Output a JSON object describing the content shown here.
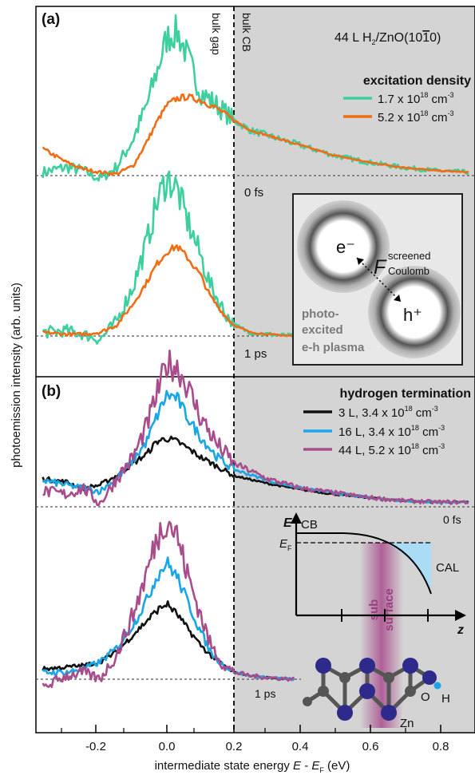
{
  "chart_data": [
    {
      "panel_label": "(a)",
      "type": "line",
      "title": "",
      "xlabel": "intermediate state energy E - EF (eV)",
      "ylabel": "photoemission intensity (arb. units)",
      "xlim": [
        -0.37,
        0.9
      ],
      "sample": "44 L H2/ZnO(10-10)",
      "legend_title": "excitation density",
      "region_labels": {
        "left": "bulk gap",
        "right": "bulk CB",
        "boundary_x": 0.2
      },
      "delay_labels": [
        "0 fs",
        "1 ps"
      ],
      "series": [
        {
          "name": "1.7 x 10^18 cm^-3",
          "color": "#3ecf9e",
          "noise": 0.9
        },
        {
          "name": "5.2 x 10^18 cm^-3",
          "color": "#f06d14",
          "noise": 0.25
        }
      ],
      "traces": [
        {
          "delay": "0 fs",
          "series": 0,
          "x": [
            -0.37,
            -0.3,
            -0.25,
            -0.2,
            -0.15,
            -0.1,
            -0.06,
            -0.03,
            0.0,
            0.03,
            0.06,
            0.1,
            0.15,
            0.2,
            0.25,
            0.3,
            0.4,
            0.5,
            0.6,
            0.7,
            0.8,
            0.9
          ],
          "y": [
            0.02,
            0.05,
            0.03,
            -0.02,
            0.05,
            0.22,
            0.42,
            0.62,
            0.82,
            0.86,
            0.72,
            0.5,
            0.42,
            0.33,
            0.27,
            0.24,
            0.18,
            0.12,
            0.08,
            0.05,
            0.03,
            0.02
          ]
        },
        {
          "delay": "0 fs",
          "series": 1,
          "x": [
            -0.37,
            -0.3,
            -0.25,
            -0.2,
            -0.15,
            -0.1,
            -0.06,
            -0.03,
            0.0,
            0.03,
            0.06,
            0.1,
            0.15,
            0.2,
            0.25,
            0.3,
            0.4,
            0.5,
            0.6,
            0.7,
            0.8,
            0.9
          ],
          "y": [
            0.16,
            0.08,
            0.04,
            0.02,
            0.01,
            0.06,
            0.2,
            0.32,
            0.42,
            0.46,
            0.47,
            0.45,
            0.4,
            0.33,
            0.27,
            0.24,
            0.18,
            0.12,
            0.08,
            0.05,
            0.03,
            0.02
          ]
        },
        {
          "delay": "1 ps",
          "series": 0,
          "x": [
            -0.37,
            -0.3,
            -0.25,
            -0.2,
            -0.15,
            -0.1,
            -0.06,
            -0.03,
            0.0,
            0.03,
            0.06,
            0.1,
            0.13,
            0.17,
            0.2,
            0.25,
            0.3,
            0.38
          ],
          "y": [
            0.02,
            0.03,
            0.01,
            -0.02,
            0.08,
            0.28,
            0.52,
            0.74,
            0.88,
            0.82,
            0.65,
            0.45,
            0.28,
            0.14,
            0.06,
            0.02,
            0.01,
            0.0
          ]
        },
        {
          "delay": "1 ps",
          "series": 1,
          "x": [
            -0.37,
            -0.3,
            -0.25,
            -0.2,
            -0.15,
            -0.1,
            -0.06,
            -0.03,
            0.0,
            0.03,
            0.06,
            0.1,
            0.13,
            0.17,
            0.2,
            0.25,
            0.3,
            0.38
          ],
          "y": [
            0.02,
            0.01,
            0.01,
            0.02,
            0.06,
            0.18,
            0.3,
            0.4,
            0.47,
            0.5,
            0.44,
            0.34,
            0.22,
            0.12,
            0.06,
            0.02,
            0.01,
            0.0
          ]
        }
      ]
    },
    {
      "panel_label": "(b)",
      "type": "line",
      "title": "",
      "xlabel": "intermediate state energy E - EF (eV)",
      "ylabel": "photoemission intensity (arb. units)",
      "xlim": [
        -0.37,
        0.9
      ],
      "x_ticks": [
        -0.2,
        0.0,
        0.2,
        0.4,
        0.6,
        0.8
      ],
      "legend_title": "hydrogen termination",
      "delay_labels": [
        "0 fs",
        "1 ps"
      ],
      "series": [
        {
          "name": "3 L, 3.4 x 10^18 cm^-3",
          "color": "#111111",
          "noise": 0.3
        },
        {
          "name": "16 L, 3.4 x 10^18 cm^-3",
          "color": "#1aa6e6",
          "noise": 0.45
        },
        {
          "name": "44 L, 5.2 x 10^18 cm^-3",
          "color": "#a84c8c",
          "noise": 0.85
        }
      ],
      "traces": [
        {
          "delay": "0 fs",
          "series": 0,
          "x": [
            -0.37,
            -0.3,
            -0.25,
            -0.2,
            -0.15,
            -0.1,
            -0.06,
            -0.03,
            0.0,
            0.03,
            0.06,
            0.1,
            0.15,
            0.2,
            0.3,
            0.4,
            0.5,
            0.6,
            0.7,
            0.8,
            0.9
          ],
          "y": [
            0.18,
            0.16,
            0.12,
            0.14,
            0.2,
            0.28,
            0.34,
            0.42,
            0.44,
            0.42,
            0.38,
            0.32,
            0.26,
            0.2,
            0.15,
            0.11,
            0.08,
            0.06,
            0.04,
            0.03,
            0.03
          ]
        },
        {
          "delay": "0 fs",
          "series": 1,
          "x": [
            -0.37,
            -0.3,
            -0.25,
            -0.2,
            -0.15,
            -0.1,
            -0.06,
            -0.03,
            0.0,
            0.03,
            0.06,
            0.1,
            0.15,
            0.2,
            0.3,
            0.4,
            0.5,
            0.6,
            0.7,
            0.8,
            0.9
          ],
          "y": [
            0.17,
            0.14,
            0.12,
            0.1,
            0.18,
            0.3,
            0.42,
            0.58,
            0.72,
            0.7,
            0.58,
            0.45,
            0.32,
            0.24,
            0.17,
            0.12,
            0.09,
            0.06,
            0.04,
            0.03,
            0.03
          ]
        },
        {
          "delay": "0 fs",
          "series": 2,
          "x": [
            -0.37,
            -0.3,
            -0.25,
            -0.2,
            -0.15,
            -0.1,
            -0.06,
            -0.03,
            0.0,
            0.03,
            0.06,
            0.1,
            0.15,
            0.2,
            0.3,
            0.4,
            0.5,
            0.6,
            0.7,
            0.8,
            0.9
          ],
          "y": [
            0.1,
            0.08,
            0.12,
            0.02,
            0.18,
            0.32,
            0.52,
            0.72,
            0.92,
            0.9,
            0.78,
            0.58,
            0.4,
            0.28,
            0.18,
            0.12,
            0.09,
            0.06,
            0.04,
            0.03,
            0.03
          ]
        },
        {
          "delay": "1 ps",
          "series": 0,
          "x": [
            -0.37,
            -0.3,
            -0.25,
            -0.2,
            -0.15,
            -0.1,
            -0.06,
            -0.03,
            0.0,
            0.03,
            0.06,
            0.1,
            0.13,
            0.17,
            0.2,
            0.25,
            0.3,
            0.38
          ],
          "y": [
            0.06,
            0.07,
            0.08,
            0.1,
            0.16,
            0.26,
            0.34,
            0.4,
            0.44,
            0.38,
            0.3,
            0.2,
            0.14,
            0.08,
            0.04,
            0.02,
            0.01,
            0.0
          ]
        },
        {
          "delay": "1 ps",
          "series": 1,
          "x": [
            -0.37,
            -0.3,
            -0.25,
            -0.2,
            -0.15,
            -0.1,
            -0.06,
            -0.03,
            0.0,
            0.03,
            0.06,
            0.1,
            0.13,
            0.17,
            0.2,
            0.25,
            0.3,
            0.38
          ],
          "y": [
            0.04,
            0.04,
            0.06,
            0.1,
            0.18,
            0.32,
            0.46,
            0.6,
            0.68,
            0.6,
            0.46,
            0.28,
            0.16,
            0.08,
            0.04,
            0.02,
            0.01,
            0.0
          ]
        },
        {
          "delay": "1 ps",
          "series": 2,
          "x": [
            -0.37,
            -0.3,
            -0.25,
            -0.2,
            -0.15,
            -0.1,
            -0.06,
            -0.03,
            0.0,
            0.03,
            0.06,
            0.1,
            0.13,
            0.17,
            0.2,
            0.25,
            0.3,
            0.38
          ],
          "y": [
            -0.05,
            0.02,
            0.04,
            0.0,
            0.14,
            0.38,
            0.62,
            0.82,
            0.94,
            0.84,
            0.62,
            0.38,
            0.2,
            0.08,
            0.04,
            0.02,
            0.01,
            0.0
          ]
        }
      ]
    }
  ],
  "inset_a": {
    "electron": "e⁻",
    "hole": "h⁺",
    "force_F": "F",
    "force_sup": "screened",
    "force_sub": "Coulomb",
    "caption": [
      "photo-",
      "excited",
      "e-h plasma"
    ]
  },
  "inset_b": {
    "axis_E": "E",
    "axis_z": "z",
    "cb": "CB",
    "ef_E": "E",
    "ef_sub": "F",
    "cal": "CAL",
    "subsurface": [
      "sub",
      "surface"
    ],
    "atoms": {
      "o": "O",
      "h": "H",
      "zn": "Zn"
    }
  },
  "text": {
    "panel_a": "(a)",
    "panel_b": "(b)",
    "bulk_gap": "bulk gap",
    "bulk_cb": "bulk CB",
    "sample_main": "44 L H",
    "sample_sub": "2",
    "sample_rest": "/ZnO(10",
    "sample_bar": "1",
    "sample_end": "0)",
    "legend_a_title": "excitation density",
    "legend_a_1": "1.7 x 10",
    "legend_a_2": "5.2 x 10",
    "legend_b_title": "hydrogen termination",
    "legend_b_1": "3 L, 3.4 x 10",
    "legend_b_2": "16 L, 3.4 x 10",
    "legend_b_3": "44 L, 5.2 x 10",
    "exp18": "18",
    "unit_cm": " cm",
    "exp_m3": "-3",
    "delay_0": "0 fs",
    "delay_1": "1 ps",
    "delay_0b": "0 fs",
    "delay_1b": "1 ps",
    "xtick_1": "-0.2",
    "xtick_2": "0.0",
    "xtick_3": "0.2",
    "xtick_4": "0.4",
    "xtick_5": "0.6",
    "xtick_6": "0.8",
    "xlabel_pre": "intermediate state energy ",
    "xlabel_E": "E",
    "xlabel_mid": " - ",
    "xlabel_E2": "E",
    "xlabel_F": "F",
    "xlabel_post": " (eV)",
    "ylabel": "photoemission intensity (arb. units)"
  }
}
